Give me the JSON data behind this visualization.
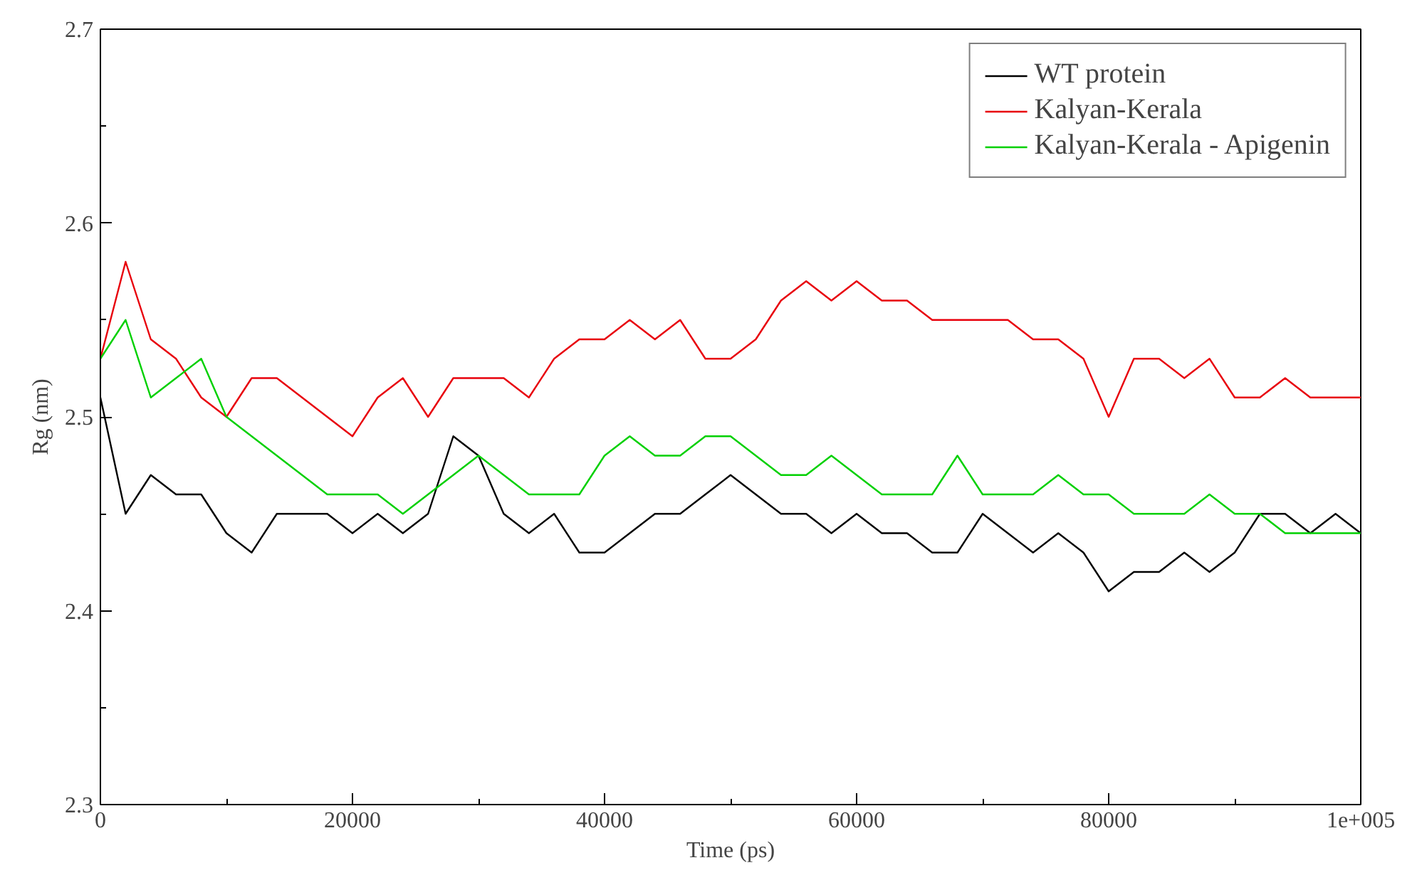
{
  "chart_data": {
    "type": "line",
    "xlabel": "Time (ps)",
    "ylabel": "Rg (nm)",
    "x": [
      0,
      2000,
      4000,
      6000,
      8000,
      10000,
      12000,
      14000,
      16000,
      18000,
      20000,
      22000,
      24000,
      26000,
      28000,
      30000,
      32000,
      34000,
      36000,
      38000,
      40000,
      42000,
      44000,
      46000,
      48000,
      50000,
      52000,
      54000,
      56000,
      58000,
      60000,
      62000,
      64000,
      66000,
      68000,
      70000,
      72000,
      74000,
      76000,
      78000,
      80000,
      82000,
      84000,
      86000,
      88000,
      90000,
      92000,
      94000,
      96000,
      98000,
      100000
    ],
    "series": [
      {
        "name": "WT protein",
        "color": "#000000",
        "values": [
          2.51,
          2.45,
          2.47,
          2.46,
          2.46,
          2.44,
          2.43,
          2.45,
          2.45,
          2.45,
          2.44,
          2.45,
          2.44,
          2.45,
          2.49,
          2.48,
          2.45,
          2.44,
          2.45,
          2.43,
          2.43,
          2.44,
          2.45,
          2.45,
          2.46,
          2.47,
          2.46,
          2.45,
          2.45,
          2.44,
          2.45,
          2.44,
          2.44,
          2.43,
          2.43,
          2.45,
          2.44,
          2.43,
          2.44,
          2.43,
          2.41,
          2.42,
          2.42,
          2.43,
          2.42,
          2.43,
          2.45,
          2.45,
          2.44,
          2.45,
          2.44
        ]
      },
      {
        "name": "Kalyan-Kerala",
        "color": "#e8000b",
        "values": [
          2.53,
          2.58,
          2.54,
          2.53,
          2.51,
          2.5,
          2.52,
          2.52,
          2.51,
          2.5,
          2.49,
          2.51,
          2.52,
          2.5,
          2.52,
          2.52,
          2.52,
          2.51,
          2.53,
          2.54,
          2.54,
          2.55,
          2.54,
          2.55,
          2.53,
          2.53,
          2.54,
          2.56,
          2.57,
          2.56,
          2.57,
          2.56,
          2.56,
          2.55,
          2.55,
          2.55,
          2.55,
          2.54,
          2.54,
          2.53,
          2.5,
          2.53,
          2.53,
          2.52,
          2.53,
          2.51,
          2.51,
          2.52,
          2.51,
          2.51,
          2.51
        ]
      },
      {
        "name": "Kalyan-Kerala - Apigenin",
        "color": "#00d000",
        "values": [
          2.53,
          2.55,
          2.51,
          2.52,
          2.53,
          2.5,
          2.49,
          2.48,
          2.47,
          2.46,
          2.46,
          2.46,
          2.45,
          2.46,
          2.47,
          2.48,
          2.47,
          2.46,
          2.46,
          2.46,
          2.48,
          2.49,
          2.48,
          2.48,
          2.49,
          2.49,
          2.48,
          2.47,
          2.47,
          2.48,
          2.47,
          2.46,
          2.46,
          2.46,
          2.48,
          2.46,
          2.46,
          2.46,
          2.47,
          2.46,
          2.46,
          2.45,
          2.45,
          2.45,
          2.46,
          2.45,
          2.45,
          2.44,
          2.44,
          2.44,
          2.44
        ]
      }
    ],
    "xlim": [
      0,
      100000
    ],
    "xticks": [
      0,
      20000,
      40000,
      60000,
      80000,
      {
        "value": 100000,
        "label": "1e+005"
      }
    ],
    "ylim": [
      2.3,
      2.7
    ],
    "yticks": [
      2.3,
      2.4,
      2.5,
      2.6,
      2.7
    ],
    "grid": false,
    "legend": "top right",
    "marker": "none",
    "line_style": "solid"
  }
}
